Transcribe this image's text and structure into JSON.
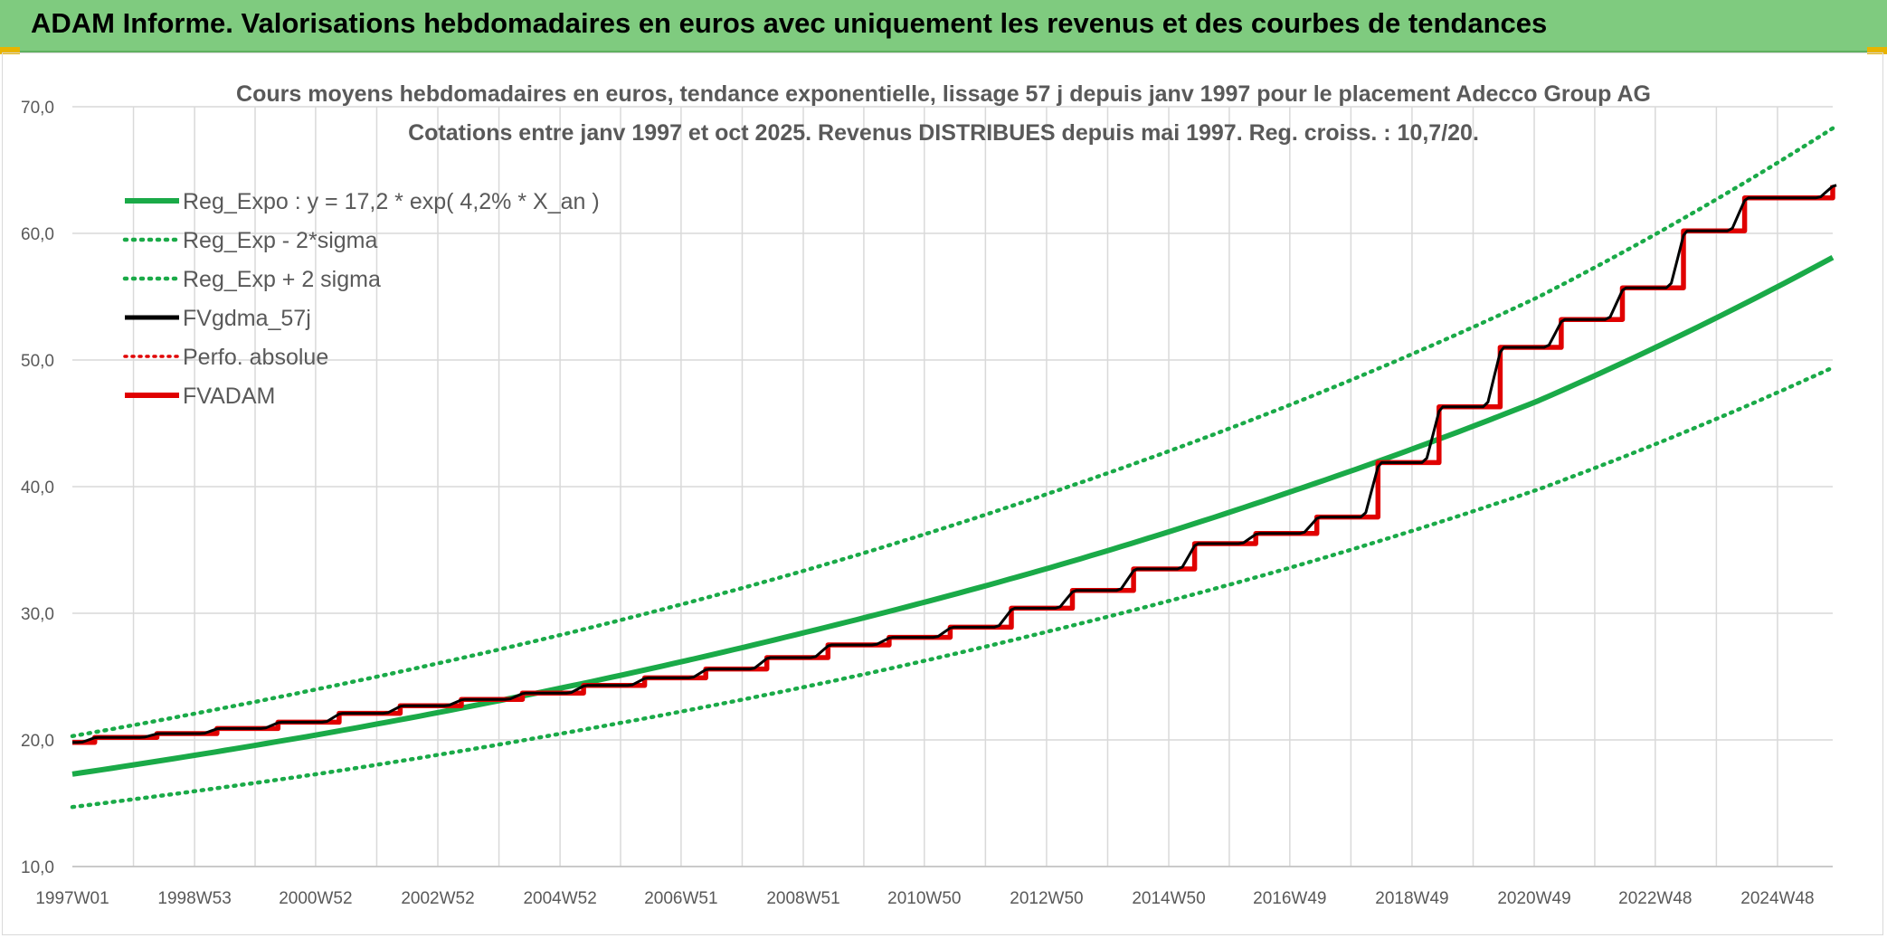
{
  "header": {
    "title": "ADAM Informe. Valorisations hebdomadaires en euros avec uniquement les revenus et des courbes de tendances"
  },
  "colors": {
    "header_bg": "#7fcb7f",
    "trend": "#1aaa48",
    "band": "#1aaa48",
    "smooth": "#000000",
    "perf": "#e00000",
    "fvadam": "#e00000",
    "grid": "#d9d9d9",
    "text": "#595959"
  },
  "chart_data": {
    "type": "line",
    "title": "Cours moyens hebdomadaires en euros, tendance exponentielle, lissage 57 j depuis janv 1997 pour le placement Adecco Group AG",
    "subtitle": "Cotations entre janv 1997 et oct 2025. Revenus DISTRIBUES depuis mai 1997. Reg. croiss. : 10,7/20.",
    "xlabel": "",
    "ylabel": "",
    "ylim": [
      10,
      70
    ],
    "yticks": [
      "10,0",
      "20,0",
      "30,0",
      "40,0",
      "50,0",
      "60,0",
      "70,0"
    ],
    "x_range": [
      "1997W01",
      "2025W43"
    ],
    "x_tick_labels": [
      "1997W01",
      "1998W53",
      "2000W52",
      "2002W52",
      "2004W52",
      "2006W51",
      "2008W51",
      "2010W50",
      "2012W50",
      "2014W50",
      "2016W49",
      "2018W49",
      "2020W49",
      "2022W48",
      "2024W48"
    ],
    "grid": true,
    "legend_position": "top-left",
    "legend": [
      "Reg_Expo : y = 17,2 * exp( 4,2% *  X_an )",
      "Reg_Exp - 2*sigma",
      "Reg_Exp + 2 sigma",
      "FVgdma_57j",
      "Perfo. absolue",
      "FVADAM"
    ],
    "series": [
      {
        "name": "Reg_Expo : y = 17,2 * exp( 4,2% *  X_an )",
        "style": "solid",
        "color": "#1aaa48",
        "x": [
          "1997W01",
          "2001W01",
          "2005W01",
          "2009W01",
          "2013W01",
          "2017W01",
          "2021W01",
          "2025W43"
        ],
        "values": [
          17.3,
          20.4,
          24.1,
          28.5,
          33.6,
          39.7,
          46.8,
          58.1
        ]
      },
      {
        "name": "Reg_Exp - 2*sigma",
        "style": "dotted",
        "color": "#1aaa48",
        "x": [
          "1997W01",
          "2001W01",
          "2005W01",
          "2009W01",
          "2013W01",
          "2017W01",
          "2021W01",
          "2025W43"
        ],
        "values": [
          14.7,
          17.3,
          20.5,
          24.2,
          28.6,
          33.7,
          39.8,
          49.4
        ]
      },
      {
        "name": "Reg_Exp + 2 sigma",
        "style": "dotted",
        "color": "#1aaa48",
        "x": [
          "1997W01",
          "2001W01",
          "2005W01",
          "2009W01",
          "2013W01",
          "2017W01",
          "2021W01",
          "2025W43"
        ],
        "values": [
          20.3,
          24.0,
          28.3,
          33.4,
          39.5,
          46.6,
          55.0,
          68.3
        ]
      },
      {
        "name": "FVgdma_57j",
        "style": "solid",
        "color": "#000000",
        "x": [
          "1997W01",
          "1997W20",
          "1998W21",
          "1999W20",
          "2000W20",
          "2001W20",
          "2002W20",
          "2003W20",
          "2004W20",
          "2005W20",
          "2006W20",
          "2007W20",
          "2008W20",
          "2009W20",
          "2010W20",
          "2011W20",
          "2012W20",
          "2013W20",
          "2014W20",
          "2015W20",
          "2016W20",
          "2017W20",
          "2018W20",
          "2019W20",
          "2020W20",
          "2021W20",
          "2022W20",
          "2023W20",
          "2024W20",
          "2025W43"
        ],
        "values": [
          19.8,
          20.2,
          20.5,
          20.9,
          21.4,
          22.1,
          22.7,
          23.2,
          23.7,
          24.3,
          24.9,
          25.6,
          26.5,
          27.5,
          28.1,
          28.9,
          30.4,
          31.8,
          33.5,
          35.5,
          36.3,
          37.6,
          41.9,
          46.3,
          51.0,
          53.2,
          55.7,
          60.2,
          62.8,
          63.8
        ]
      },
      {
        "name": "Perfo. absolue",
        "style": "dotted",
        "color": "#e00000",
        "x": [],
        "values": []
      },
      {
        "name": "FVADAM",
        "style": "solid",
        "color": "#e00000",
        "x": [
          "1997W01",
          "1997W20",
          "1998W21",
          "1999W20",
          "2000W20",
          "2001W20",
          "2002W20",
          "2003W20",
          "2004W20",
          "2005W20",
          "2006W20",
          "2007W20",
          "2008W20",
          "2009W20",
          "2010W20",
          "2011W20",
          "2012W20",
          "2013W20",
          "2014W20",
          "2015W20",
          "2016W20",
          "2017W20",
          "2018W20",
          "2019W20",
          "2020W20",
          "2021W20",
          "2022W20",
          "2023W20",
          "2024W20",
          "2025W43"
        ],
        "values": [
          19.8,
          20.2,
          20.5,
          20.9,
          21.4,
          22.1,
          22.7,
          23.2,
          23.7,
          24.3,
          24.9,
          25.6,
          26.5,
          27.5,
          28.1,
          28.9,
          30.4,
          31.8,
          33.5,
          35.5,
          36.3,
          37.6,
          41.9,
          46.3,
          51.0,
          53.2,
          55.7,
          60.2,
          62.8,
          63.8
        ]
      }
    ]
  }
}
